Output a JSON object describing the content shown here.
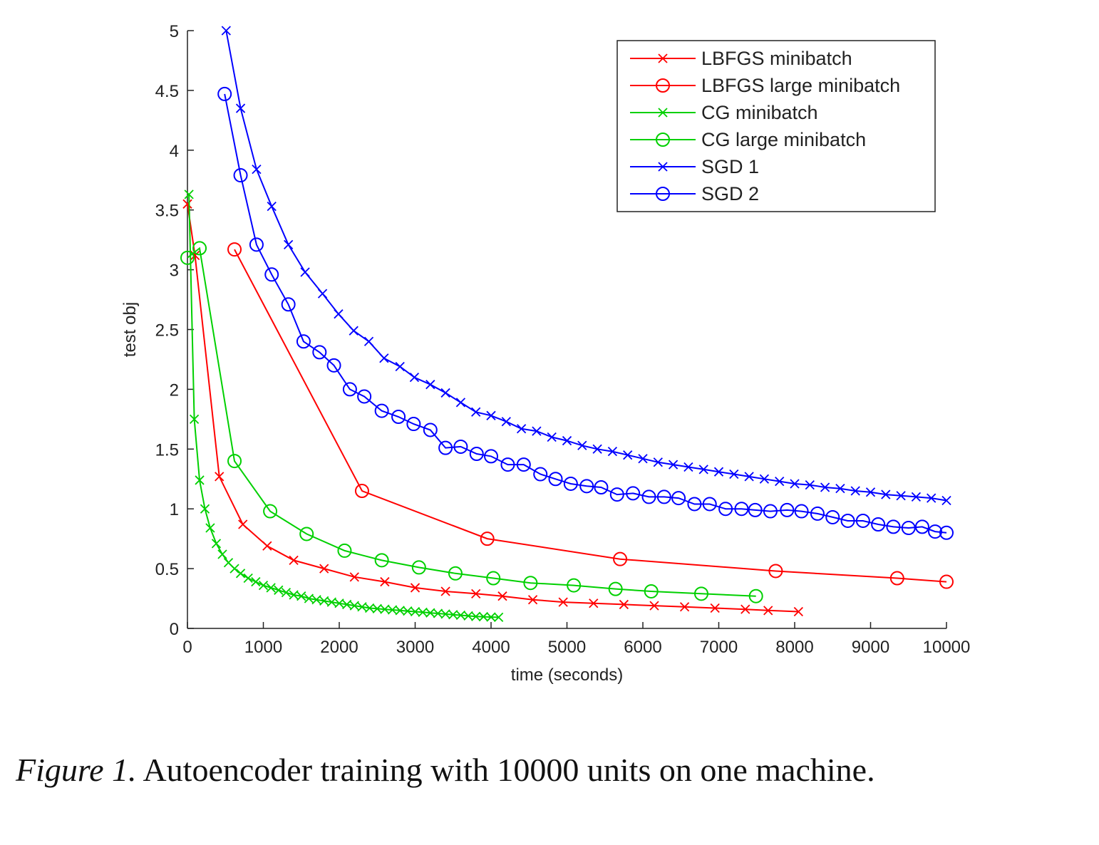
{
  "chart_data": {
    "type": "line",
    "xlabel": "time (seconds)",
    "ylabel": "test obj",
    "xlim": [
      0,
      10000
    ],
    "ylim": [
      0,
      5
    ],
    "xticks": [
      0,
      1000,
      2000,
      3000,
      4000,
      5000,
      6000,
      7000,
      8000,
      9000,
      10000
    ],
    "xtick_labels": [
      "0",
      "1000",
      "2000",
      "3000",
      "4000",
      "5000",
      "6000",
      "7000",
      "8000",
      "9000",
      "10000"
    ],
    "yticks": [
      0,
      0.5,
      1,
      1.5,
      2,
      2.5,
      3,
      3.5,
      4,
      4.5,
      5
    ],
    "ytick_labels": [
      "0",
      "0.5",
      "1",
      "1.5",
      "2",
      "2.5",
      "3",
      "3.5",
      "4",
      "4.5",
      "5"
    ],
    "grid": false,
    "legend_position": "top-right",
    "series": [
      {
        "name": "LBFGS minibatch",
        "color": "#ff0000",
        "marker": "x",
        "x": [
          0,
          100,
          420,
          730,
          1050,
          1400,
          1800,
          2200,
          2600,
          3000,
          3400,
          3800,
          4150,
          4550,
          4950,
          5350,
          5750,
          6150,
          6550,
          6950,
          7350,
          7650,
          8050
        ],
        "y": [
          3.55,
          3.12,
          1.27,
          0.87,
          0.69,
          0.57,
          0.5,
          0.43,
          0.39,
          0.34,
          0.31,
          0.29,
          0.27,
          0.24,
          0.22,
          0.21,
          0.2,
          0.19,
          0.18,
          0.17,
          0.16,
          0.15,
          0.14
        ]
      },
      {
        "name": "LBFGS large minibatch",
        "color": "#ff0000",
        "marker": "o",
        "x": [
          620,
          2300,
          3950,
          5700,
          7750,
          9350,
          10000
        ],
        "y": [
          3.17,
          1.15,
          0.75,
          0.58,
          0.48,
          0.42,
          0.39
        ]
      },
      {
        "name": "CG minibatch",
        "color": "#00d000",
        "marker": "x",
        "x": [
          20,
          90,
          160,
          230,
          300,
          380,
          460,
          540,
          620,
          700,
          800,
          900,
          1000,
          1100,
          1200,
          1300,
          1400,
          1500,
          1600,
          1700,
          1800,
          1900,
          2000,
          2100,
          2200,
          2300,
          2400,
          2500,
          2600,
          2700,
          2800,
          2900,
          3000,
          3100,
          3200,
          3300,
          3400,
          3500,
          3600,
          3700,
          3800,
          3900,
          4000,
          4100
        ],
        "y": [
          3.63,
          1.75,
          1.24,
          1.0,
          0.84,
          0.71,
          0.62,
          0.55,
          0.5,
          0.46,
          0.42,
          0.39,
          0.36,
          0.34,
          0.32,
          0.3,
          0.28,
          0.27,
          0.25,
          0.24,
          0.23,
          0.22,
          0.21,
          0.2,
          0.19,
          0.18,
          0.17,
          0.165,
          0.16,
          0.155,
          0.15,
          0.145,
          0.14,
          0.135,
          0.13,
          0.125,
          0.12,
          0.115,
          0.11,
          0.105,
          0.1,
          0.098,
          0.095,
          0.093
        ]
      },
      {
        "name": "CG large minibatch",
        "color": "#00d000",
        "marker": "o",
        "x": [
          0,
          160,
          620,
          1090,
          1570,
          2070,
          2560,
          3050,
          3530,
          4030,
          4520,
          5090,
          5640,
          6110,
          6770,
          7490
        ],
        "y": [
          3.1,
          3.18,
          1.4,
          0.98,
          0.79,
          0.65,
          0.57,
          0.51,
          0.46,
          0.42,
          0.38,
          0.36,
          0.33,
          0.31,
          0.29,
          0.27
        ]
      },
      {
        "name": "SGD 1",
        "color": "#0000ff",
        "marker": "x",
        "x": [
          510,
          700,
          910,
          1110,
          1330,
          1550,
          1780,
          1990,
          2190,
          2390,
          2590,
          2800,
          2990,
          3200,
          3400,
          3600,
          3800,
          4000,
          4200,
          4400,
          4600,
          4800,
          5000,
          5200,
          5400,
          5600,
          5800,
          6000,
          6200,
          6400,
          6600,
          6800,
          7000,
          7200,
          7400,
          7600,
          7800,
          8000,
          8200,
          8400,
          8600,
          8800,
          9000,
          9200,
          9400,
          9600,
          9800,
          10000
        ],
        "y": [
          5.0,
          4.35,
          3.84,
          3.53,
          3.21,
          2.98,
          2.8,
          2.63,
          2.49,
          2.4,
          2.26,
          2.19,
          2.1,
          2.04,
          1.97,
          1.89,
          1.81,
          1.78,
          1.73,
          1.67,
          1.65,
          1.6,
          1.57,
          1.53,
          1.5,
          1.48,
          1.45,
          1.42,
          1.39,
          1.37,
          1.35,
          1.33,
          1.31,
          1.29,
          1.27,
          1.25,
          1.23,
          1.21,
          1.2,
          1.18,
          1.17,
          1.15,
          1.14,
          1.12,
          1.11,
          1.1,
          1.09,
          1.07
        ]
      },
      {
        "name": "SGD 2",
        "color": "#0000ff",
        "marker": "o",
        "x": [
          490,
          700,
          910,
          1110,
          1330,
          1530,
          1740,
          1930,
          2140,
          2330,
          2560,
          2780,
          2980,
          3200,
          3400,
          3600,
          3810,
          4000,
          4220,
          4430,
          4650,
          4850,
          5050,
          5260,
          5450,
          5660,
          5870,
          6080,
          6280,
          6470,
          6680,
          6880,
          7090,
          7300,
          7480,
          7680,
          7900,
          8090,
          8300,
          8500,
          8700,
          8900,
          9100,
          9300,
          9500,
          9680,
          9850,
          10000
        ],
        "y": [
          4.47,
          3.79,
          3.21,
          2.96,
          2.71,
          2.4,
          2.31,
          2.2,
          2.0,
          1.94,
          1.82,
          1.77,
          1.71,
          1.66,
          1.51,
          1.52,
          1.46,
          1.44,
          1.37,
          1.37,
          1.29,
          1.25,
          1.21,
          1.19,
          1.18,
          1.12,
          1.13,
          1.1,
          1.1,
          1.09,
          1.04,
          1.04,
          1.0,
          1.0,
          0.99,
          0.98,
          0.99,
          0.98,
          0.96,
          0.93,
          0.9,
          0.9,
          0.87,
          0.85,
          0.84,
          0.85,
          0.81,
          0.8
        ]
      }
    ]
  },
  "caption": {
    "prefix": "Figure 1.",
    "text": " Autoencoder training with 10000 units on one machine."
  }
}
